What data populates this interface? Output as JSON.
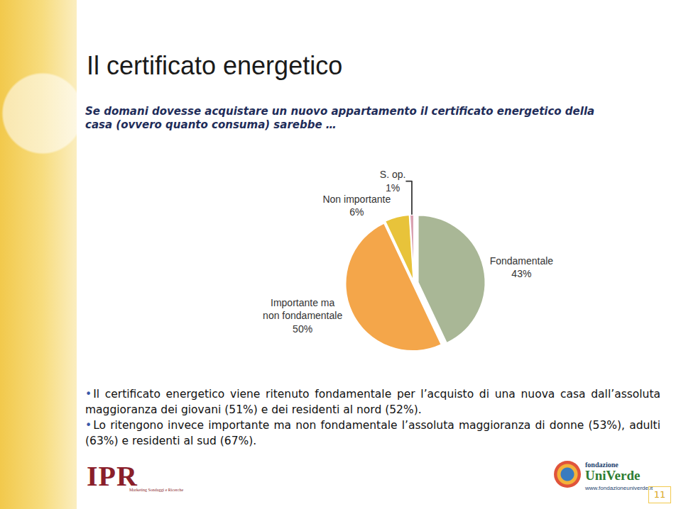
{
  "chart_data": {
    "type": "pie",
    "title": "Il certificato energetico",
    "subtitle": "Se domani dovesse acquistare un nuovo appartamento il certificato energetico della casa (ovvero quanto consuma) sarebbe …",
    "categories": [
      "Fondamentale",
      "Importante ma non fondamentale",
      "Non importante",
      "S. op."
    ],
    "values": [
      43,
      50,
      6,
      1
    ],
    "value_labels": [
      "43%",
      "50%",
      "6%",
      "1%"
    ],
    "colors": [
      "#a9b796",
      "#f4a64a",
      "#e8c33a",
      "#d9a0b0"
    ],
    "data_labels": true,
    "annotations": [
      "Il certificato energetico viene ritenuto fondamentale per l’acquisto di una nuova casa dall’assoluta maggioranza dei giovani (51%) e dei residenti al nord (52%).",
      "Lo ritengono invece importante ma non fondamentale l’assoluta maggioranza di donne (53%), adulti (63%) e residenti al sud (67%)."
    ]
  },
  "slide": {
    "logo_left": {
      "name": "IPR",
      "tagline": "Marketing Sondaggi e Ricerche"
    },
    "logo_right": {
      "line1": "fondazione",
      "line2": "UniVerde",
      "url": "www.fondazioneuniverde.it"
    },
    "page": "11"
  }
}
